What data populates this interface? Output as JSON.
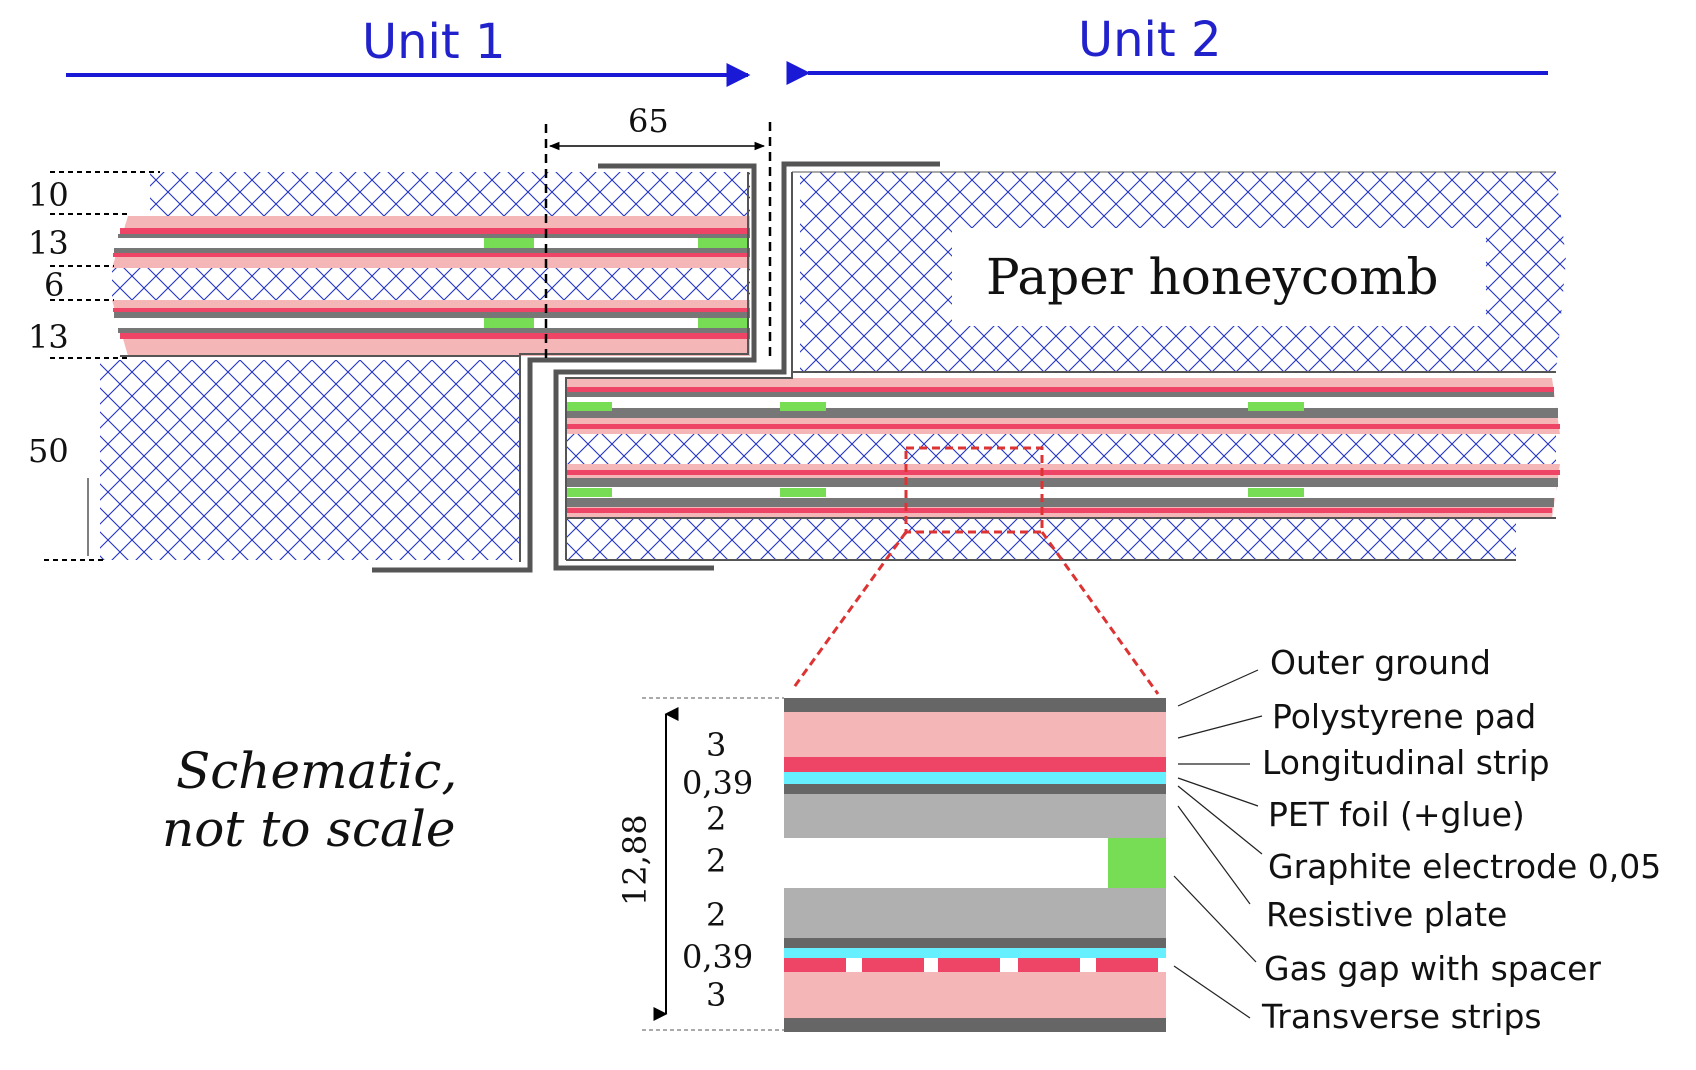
{
  "units": {
    "unit1": "Unit 1",
    "unit2": "Unit 2"
  },
  "dimensions": {
    "overlap": "65",
    "layers": [
      "10",
      "13",
      "6",
      "13",
      "50"
    ]
  },
  "honeycomb_label": "Paper honeycomb",
  "note": {
    "line1": "Schematic,",
    "line2": "not to scale"
  },
  "detail": {
    "total": "12,88",
    "layers": [
      "3",
      "0,39",
      "2",
      "2",
      "2",
      "0,39",
      "3"
    ]
  },
  "legend": [
    "Outer ground",
    "Polystyrene pad",
    "Longitudinal strip",
    "PET foil (+glue)",
    "Graphite electrode 0,05",
    "Resistive plate",
    "Gas gap with spacer",
    "Transverse strips"
  ],
  "colors": {
    "arrow_blue": "#1a1ad6",
    "honeycomb_blue": "#2233cc",
    "ground_gray": "#666666",
    "pad_pink": "#f4b6b6",
    "strip_red": "#ee4466",
    "pet_cyan": "#66f0ff",
    "spacer_green": "#77dd55",
    "resistive_gray": "#b0b0b0",
    "outline_dark": "#444444",
    "callout_red": "#dd3333"
  }
}
